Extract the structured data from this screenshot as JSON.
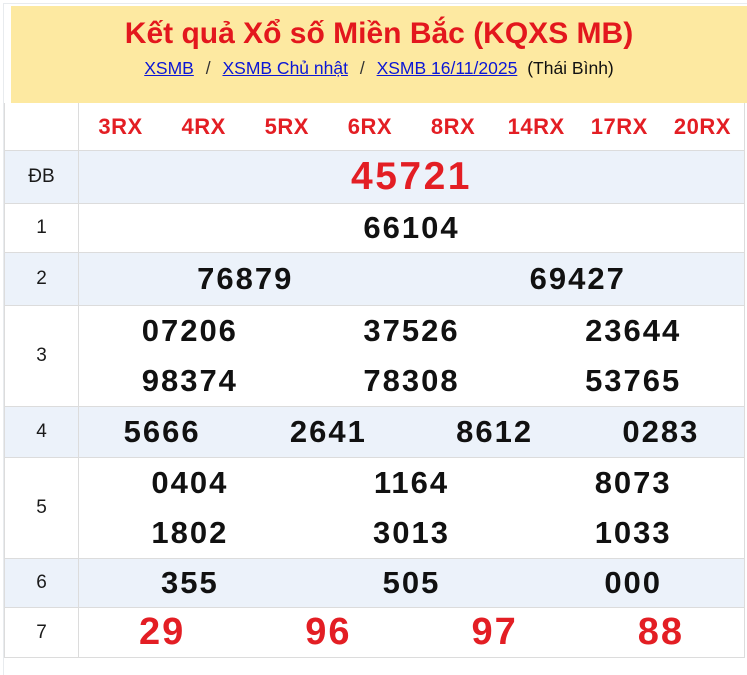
{
  "header": {
    "title": "Kết quả Xổ số Miền Bắc (KQXS MB)",
    "breadcrumb": {
      "links": [
        "XSMB",
        "XSMB Chủ nhật",
        "XSMB 16/11/2025"
      ],
      "separator": "/",
      "suffix": "(Thái Bình)"
    }
  },
  "table": {
    "columns": [
      "3RX",
      "4RX",
      "5RX",
      "6RX",
      "8RX",
      "14RX",
      "17RX",
      "20RX"
    ],
    "rows": [
      {
        "label": "ĐB",
        "lines": [
          [
            "45721"
          ]
        ]
      },
      {
        "label": "1",
        "lines": [
          [
            "66104"
          ]
        ]
      },
      {
        "label": "2",
        "lines": [
          [
            "76879",
            "69427"
          ]
        ]
      },
      {
        "label": "3",
        "lines": [
          [
            "07206",
            "37526",
            "23644"
          ],
          [
            "98374",
            "78308",
            "53765"
          ]
        ]
      },
      {
        "label": "4",
        "lines": [
          [
            "5666",
            "2641",
            "8612",
            "0283"
          ]
        ]
      },
      {
        "label": "5",
        "lines": [
          [
            "0404",
            "1164",
            "8073"
          ],
          [
            "1802",
            "3013",
            "1033"
          ]
        ]
      },
      {
        "label": "6",
        "lines": [
          [
            "355",
            "505",
            "000"
          ]
        ]
      },
      {
        "label": "7",
        "lines": [
          [
            "29",
            "96",
            "97",
            "88"
          ]
        ]
      }
    ]
  },
  "colors": {
    "accent_red": "#e31e24",
    "title_red": "#e3171d",
    "link_blue": "#0b16d6",
    "header_bg": "#fde9a1",
    "row_alt_bg": "#ecf2fa",
    "grid_border": "#dcdcdc"
  }
}
